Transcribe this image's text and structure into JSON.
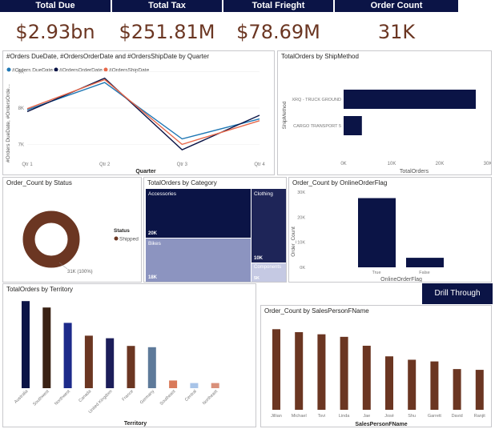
{
  "kpis": [
    {
      "label": "Total Due",
      "value": "$2.93bn"
    },
    {
      "label": "Total Tax",
      "value": "$251.81M"
    },
    {
      "label": "Total Frieght",
      "value": "$78.69M"
    },
    {
      "label": "Order Count",
      "value": "31K"
    }
  ],
  "drill_button": "Drill Through",
  "legend_label_status": "Status",
  "colors": {
    "navy": "#0b1446",
    "brown": "#6b3622",
    "teal": "#1f77b4",
    "orange": "#e8684a"
  },
  "chart_data": [
    {
      "type": "line",
      "title": "#Orders DueDate, #OrdersOrderDate and #OrdersShipDate by Quarter",
      "xlabel": "Quarter",
      "ylabel": "#Orders DueDate, #OrdersOrde...",
      "categories": [
        "Qtr 1",
        "Qtr 2",
        "Qtr 3",
        "Qtr 4"
      ],
      "ylim": [
        6.7,
        8.9
      ],
      "yticks": [
        "7K",
        "8K",
        "9K"
      ],
      "series": [
        {
          "name": "#Orders DueDate",
          "values": [
            7.95,
            8.7,
            7.15,
            7.7
          ]
        },
        {
          "name": "#OrdersOrderDate",
          "values": [
            7.9,
            8.82,
            6.85,
            7.8
          ]
        },
        {
          "name": "#OrdersShipDate",
          "values": [
            7.98,
            8.78,
            7.0,
            7.65
          ]
        }
      ]
    },
    {
      "type": "bar",
      "title": "TotalOrders by ShipMethod",
      "xlabel": "TotalOrders",
      "ylabel": "ShipMethod",
      "categories": [
        "XRQ - TRUCK GROUND",
        "CARGO TRANSPORT 5"
      ],
      "values": [
        27500,
        3800
      ],
      "xlim": [
        0,
        30000
      ],
      "xticks": [
        "0K",
        "10K",
        "20K",
        "30K"
      ]
    },
    {
      "type": "pie",
      "title": "Order_Count by Status",
      "categories": [
        "Shipped"
      ],
      "values": [
        31000
      ],
      "data_label": "31K (100%)"
    },
    {
      "type": "heatmap",
      "title": "TotalOrders by Category",
      "categories": [
        "Accessories",
        "Bikes",
        "Clothing",
        "Components"
      ],
      "values": [
        20000,
        18000,
        10000,
        5000
      ],
      "data_labels": [
        "20K",
        "18K",
        "10K",
        "5K"
      ]
    },
    {
      "type": "bar",
      "title": "Order_Count by OnlineOrderFlag",
      "xlabel": "OnlineOrderFlag",
      "ylabel": "Order_Count",
      "categories": [
        "True",
        "False"
      ],
      "values": [
        27600,
        3800
      ],
      "ylim": [
        0,
        30000
      ],
      "yticks": [
        "0K",
        "10K",
        "20K",
        "30K"
      ]
    },
    {
      "type": "bar",
      "title": "TotalOrders by Territory",
      "xlabel": "Territory",
      "categories": [
        "Australia",
        "Southwest",
        "Northwest",
        "Canada",
        "United Kingdom",
        "France",
        "Germany",
        "Southeast",
        "Central",
        "Northeast"
      ],
      "values": [
        6800,
        6300,
        5100,
        4100,
        3900,
        3300,
        3200,
        600,
        400,
        400
      ],
      "ylim": [
        0,
        7000
      ]
    },
    {
      "type": "bar",
      "title": "Order_Count by SalesPersonFName",
      "xlabel": "SalesPersonFName",
      "categories": [
        "Jillian",
        "Michael",
        "Tsvi",
        "Linda",
        "Jae",
        "José",
        "Shu",
        "Garrett",
        "David",
        "Ranjit"
      ],
      "values": [
        1900,
        1830,
        1780,
        1720,
        1510,
        1260,
        1180,
        1140,
        960,
        942
      ],
      "ylim": [
        0,
        2000
      ]
    }
  ]
}
